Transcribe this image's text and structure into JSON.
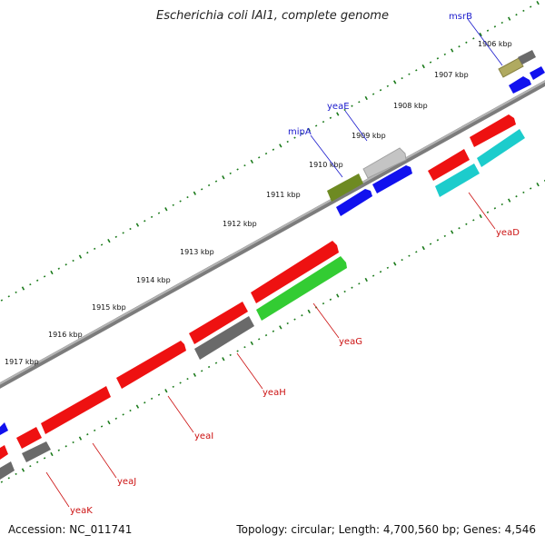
{
  "title": "Escherichia coli IAI1, complete genome",
  "footer": {
    "accession": "Accession: NC_011741",
    "topology": "Topology: circular; Length: 4,700,560 bp; Genes: 4,546"
  },
  "colors": {
    "backbone": "#8a8a8a",
    "tick": "#1a7a1a",
    "forward_label": "#1a1acc",
    "reverse_label": "#cc1111",
    "red": "#ee1111",
    "blue": "#1111ee",
    "gray": "#666666",
    "lightgray": "#c4c4c4",
    "olive": "#6e8a22",
    "khaki": "#b0aa60",
    "cyan": "#1ccccc",
    "green": "#33cc33"
  },
  "kbp_labels": [
    "1906 kbp",
    "1907 kbp",
    "1908 kbp",
    "1909 kbp",
    "1910 kbp",
    "1911 kbp",
    "1912 kbp",
    "1913 kbp",
    "1914 kbp",
    "1915 kbp",
    "1916 kbp",
    "1917 kbp"
  ],
  "gene_labels": {
    "forward": [
      "msrB",
      "yeaE",
      "mipA"
    ],
    "reverse": [
      "yeaD",
      "yeaG",
      "yeaH",
      "yeaI",
      "yeaJ",
      "yeaK"
    ]
  }
}
